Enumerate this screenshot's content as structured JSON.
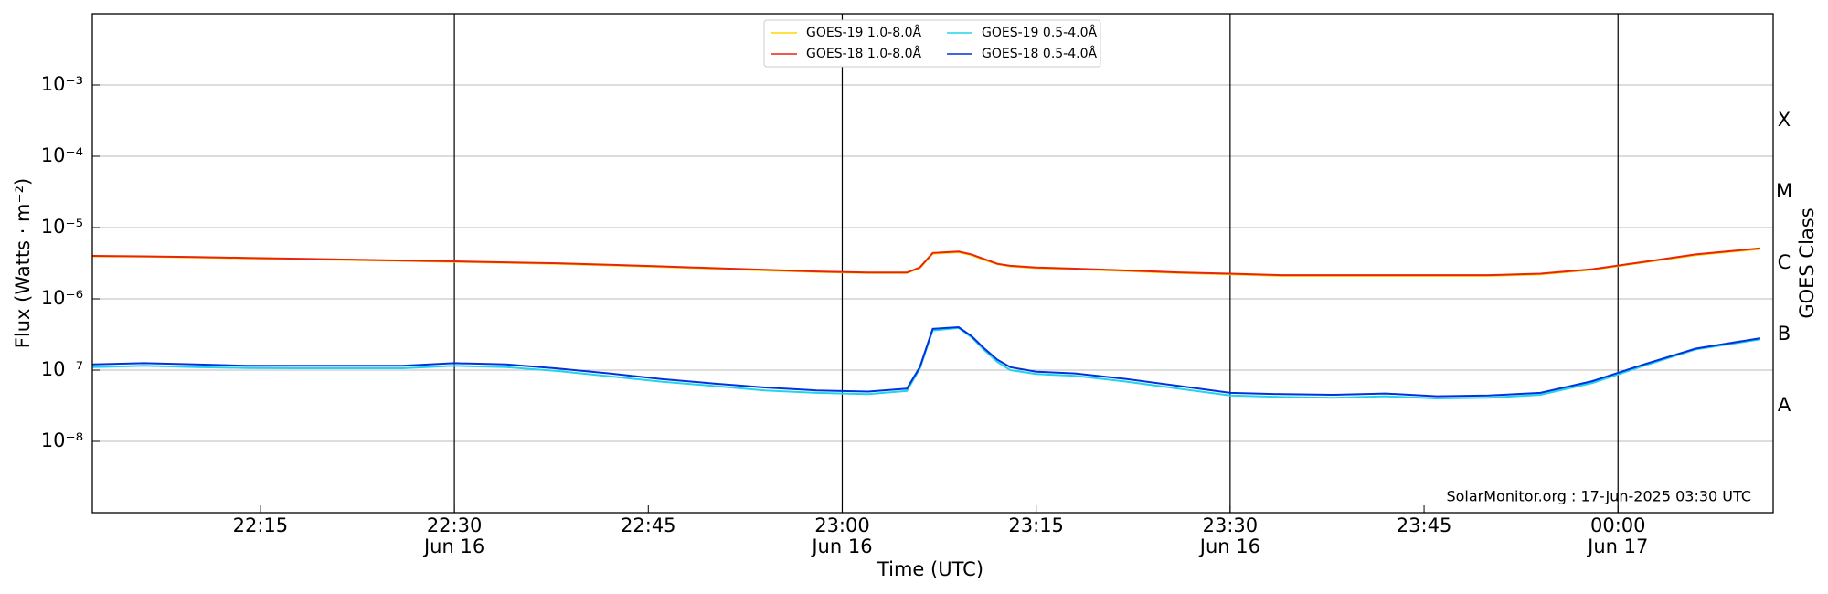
{
  "chart_data": {
    "type": "line",
    "xlabel": "Time (UTC)",
    "ylabel": "Flux (Watts · m⁻²)",
    "y2label": "GOES Class",
    "footnote": "SolarMonitor.org : 17-Jun-2025 03:30 UTC",
    "log_y": true,
    "ylim": [
      1e-09,
      0.01
    ],
    "yticks": [
      {
        "value": 1e-08,
        "label": "10⁻⁸"
      },
      {
        "value": 1e-07,
        "label": "10⁻⁷"
      },
      {
        "value": 1e-06,
        "label": "10⁻⁶"
      },
      {
        "value": 1e-05,
        "label": "10⁻⁵"
      },
      {
        "value": 0.0001,
        "label": "10⁻⁴"
      },
      {
        "value": 0.001,
        "label": "10⁻³"
      }
    ],
    "classes": [
      {
        "label": "A",
        "value": 1e-08
      },
      {
        "label": "B",
        "value": 1e-07
      },
      {
        "label": "C",
        "value": 1e-06
      },
      {
        "label": "M",
        "value": 1e-05
      },
      {
        "label": "X",
        "value": 0.0001
      }
    ],
    "xlim": [
      "Jun 16 22:02",
      "Jun 17 00:12"
    ],
    "xticks": [
      {
        "value": "Jun 16 22:15",
        "label": [
          "22:15"
        ]
      },
      {
        "value": "Jun 16 22:30",
        "label": [
          "22:30",
          "Jun 16"
        ]
      },
      {
        "value": "Jun 16 22:45",
        "label": [
          "22:45"
        ]
      },
      {
        "value": "Jun 16 23:00",
        "label": [
          "23:00",
          "Jun 16"
        ]
      },
      {
        "value": "Jun 16 23:15",
        "label": [
          "23:15"
        ]
      },
      {
        "value": "Jun 16 23:30",
        "label": [
          "23:30",
          "Jun 16"
        ]
      },
      {
        "value": "Jun 16 23:45",
        "label": [
          "23:45"
        ]
      },
      {
        "value": "Jun 17 00:00",
        "label": [
          "00:00",
          "Jun 17"
        ]
      }
    ],
    "x": [
      "Jun 16 22:02",
      "Jun 16 22:06",
      "Jun 16 22:10",
      "Jun 16 22:14",
      "Jun 16 22:18",
      "Jun 16 22:22",
      "Jun 16 22:26",
      "Jun 16 22:30",
      "Jun 16 22:34",
      "Jun 16 22:38",
      "Jun 16 22:42",
      "Jun 16 22:46",
      "Jun 16 22:50",
      "Jun 16 22:54",
      "Jun 16 22:58",
      "Jun 16 23:02",
      "Jun 16 23:05",
      "Jun 16 23:06",
      "Jun 16 23:07",
      "Jun 16 23:09",
      "Jun 16 23:10",
      "Jun 16 23:11",
      "Jun 16 23:12",
      "Jun 16 23:13",
      "Jun 16 23:15",
      "Jun 16 23:18",
      "Jun 16 23:22",
      "Jun 16 23:26",
      "Jun 16 23:30",
      "Jun 16 23:34",
      "Jun 16 23:38",
      "Jun 16 23:42",
      "Jun 16 23:46",
      "Jun 16 23:50",
      "Jun 16 23:54",
      "Jun 16 23:58",
      "Jun 17 00:02",
      "Jun 17 00:06",
      "Jun 17 00:11"
    ],
    "series": [
      {
        "name": "GOES-19 1.0-8.0Å",
        "color": "#ffd700",
        "values": [
          3.95e-06,
          3.9e-06,
          3.8e-06,
          3.7e-06,
          3.6e-06,
          3.5e-06,
          3.4e-06,
          3.3e-06,
          3.2e-06,
          3.1e-06,
          2.95e-06,
          2.8e-06,
          2.65e-06,
          2.5e-06,
          2.38e-06,
          2.3e-06,
          2.3e-06,
          2.7e-06,
          4.3e-06,
          4.5e-06,
          4.1e-06,
          3.5e-06,
          3.05e-06,
          2.85e-06,
          2.7e-06,
          2.6e-06,
          2.45e-06,
          2.3e-06,
          2.2e-06,
          2.1e-06,
          2.1e-06,
          2.1e-06,
          2.1e-06,
          2.1e-06,
          2.2e-06,
          2.55e-06,
          3.25e-06,
          4.1e-06,
          5e-06
        ]
      },
      {
        "name": "GOES-18 1.0-8.0Å",
        "color": "#e8250c",
        "values": [
          4e-06,
          3.95e-06,
          3.85e-06,
          3.75e-06,
          3.65e-06,
          3.55e-06,
          3.45e-06,
          3.35e-06,
          3.25e-06,
          3.15e-06,
          3e-06,
          2.85e-06,
          2.7e-06,
          2.55e-06,
          2.42e-06,
          2.33e-06,
          2.33e-06,
          2.75e-06,
          4.4e-06,
          4.6e-06,
          4.2e-06,
          3.6e-06,
          3.1e-06,
          2.9e-06,
          2.75e-06,
          2.65e-06,
          2.5e-06,
          2.35e-06,
          2.25e-06,
          2.15e-06,
          2.15e-06,
          2.15e-06,
          2.15e-06,
          2.15e-06,
          2.25e-06,
          2.6e-06,
          3.3e-06,
          4.2e-06,
          5.1e-06
        ]
      },
      {
        "name": "GOES-19 0.5-4.0Å",
        "color": "#22d3ee",
        "values": [
          1.1e-07,
          1.15e-07,
          1.1e-07,
          1.07e-07,
          1.06e-07,
          1.06e-07,
          1.06e-07,
          1.15e-07,
          1.1e-07,
          9.7e-08,
          8.2e-08,
          6.9e-08,
          6e-08,
          5.2e-08,
          4.8e-08,
          4.6e-08,
          5.1e-08,
          1.05e-07,
          3.6e-07,
          3.9e-07,
          2.9e-07,
          1.9e-07,
          1.3e-07,
          1e-07,
          8.8e-08,
          8.3e-08,
          6.9e-08,
          5.5e-08,
          4.4e-08,
          4.2e-08,
          4.1e-08,
          4.3e-08,
          4e-08,
          4.1e-08,
          4.5e-08,
          6.6e-08,
          1.15e-07,
          1.95e-07,
          2.7e-07
        ]
      },
      {
        "name": "GOES-18 0.5-4.0Å",
        "color": "#0033dd",
        "values": [
          1.2e-07,
          1.25e-07,
          1.2e-07,
          1.15e-07,
          1.15e-07,
          1.15e-07,
          1.15e-07,
          1.25e-07,
          1.2e-07,
          1.05e-07,
          9e-08,
          7.5e-08,
          6.5e-08,
          5.7e-08,
          5.2e-08,
          5e-08,
          5.5e-08,
          1.1e-07,
          3.8e-07,
          4e-07,
          3e-07,
          2e-07,
          1.4e-07,
          1.1e-07,
          9.5e-08,
          9e-08,
          7.5e-08,
          6e-08,
          4.8e-08,
          4.6e-08,
          4.5e-08,
          4.7e-08,
          4.3e-08,
          4.4e-08,
          4.8e-08,
          7e-08,
          1.2e-07,
          2e-07,
          2.8e-07
        ]
      }
    ]
  }
}
